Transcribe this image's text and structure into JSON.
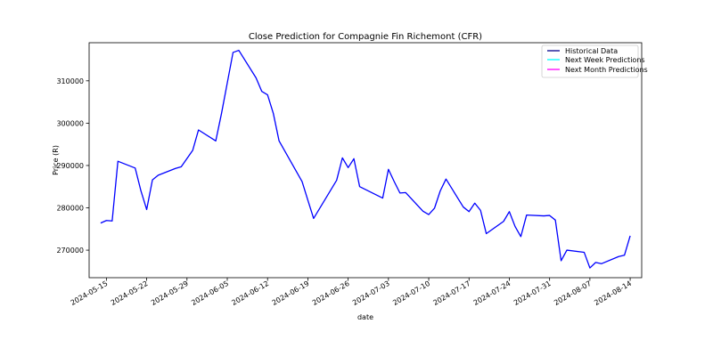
{
  "chart_data": {
    "type": "line",
    "title": "Close Prediction for Compagnie Fin Richemont (CFR)",
    "xlabel": "date",
    "ylabel": "Price (R)",
    "ylim": [
      263500,
      319000
    ],
    "xlim": [
      "2024-05-12",
      "2024-08-16"
    ],
    "x_ticks": [
      "2024-05-15",
      "2024-05-22",
      "2024-05-29",
      "2024-06-05",
      "2024-06-12",
      "2024-06-19",
      "2024-06-26",
      "2024-07-03",
      "2024-07-10",
      "2024-07-17",
      "2024-07-24",
      "2024-07-31",
      "2024-08-07",
      "2024-08-14"
    ],
    "y_ticks": [
      270000,
      280000,
      290000,
      300000,
      310000
    ],
    "y_tick_labels": [
      "270000",
      "280000",
      "290000",
      "300000",
      "310000"
    ],
    "legend_position": "top-right",
    "series": [
      {
        "name": "Historical Data",
        "color": "#0000ff",
        "legend_color": "#00008b",
        "points": [
          [
            "2024-05-14",
            276400
          ],
          [
            "2024-05-15",
            277000
          ],
          [
            "2024-05-16",
            276900
          ],
          [
            "2024-05-17",
            291000
          ],
          [
            "2024-05-20",
            289400
          ],
          [
            "2024-05-21",
            284000
          ],
          [
            "2024-05-22",
            279600
          ],
          [
            "2024-05-23",
            286600
          ],
          [
            "2024-05-24",
            287700
          ],
          [
            "2024-05-27",
            289300
          ],
          [
            "2024-05-28",
            289700
          ],
          [
            "2024-05-30",
            293600
          ],
          [
            "2024-05-31",
            298400
          ],
          [
            "2024-06-03",
            295800
          ],
          [
            "2024-06-04",
            302300
          ],
          [
            "2024-06-05",
            309500
          ],
          [
            "2024-06-06",
            316700
          ],
          [
            "2024-06-07",
            317200
          ],
          [
            "2024-06-10",
            310700
          ],
          [
            "2024-06-11",
            307500
          ],
          [
            "2024-06-12",
            306700
          ],
          [
            "2024-06-13",
            302300
          ],
          [
            "2024-06-14",
            295800
          ],
          [
            "2024-06-18",
            286200
          ],
          [
            "2024-06-19",
            281800
          ],
          [
            "2024-06-20",
            277500
          ],
          [
            "2024-06-24",
            286500
          ],
          [
            "2024-06-25",
            291800
          ],
          [
            "2024-06-26",
            289500
          ],
          [
            "2024-06-27",
            291600
          ],
          [
            "2024-06-28",
            285000
          ],
          [
            "2024-07-02",
            282300
          ],
          [
            "2024-07-03",
            289100
          ],
          [
            "2024-07-04",
            286200
          ],
          [
            "2024-07-05",
            283500
          ],
          [
            "2024-07-06",
            283600
          ],
          [
            "2024-07-09",
            279200
          ],
          [
            "2024-07-10",
            278400
          ],
          [
            "2024-07-11",
            279900
          ],
          [
            "2024-07-12",
            284000
          ],
          [
            "2024-07-13",
            286800
          ],
          [
            "2024-07-16",
            280200
          ],
          [
            "2024-07-17",
            279100
          ],
          [
            "2024-07-18",
            281100
          ],
          [
            "2024-07-19",
            279400
          ],
          [
            "2024-07-20",
            273900
          ],
          [
            "2024-07-23",
            276800
          ],
          [
            "2024-07-24",
            279100
          ],
          [
            "2024-07-25",
            275600
          ],
          [
            "2024-07-26",
            273200
          ],
          [
            "2024-07-27",
            278300
          ],
          [
            "2024-07-30",
            278100
          ],
          [
            "2024-07-31",
            278200
          ],
          [
            "2024-08-01",
            277100
          ],
          [
            "2024-08-02",
            267500
          ],
          [
            "2024-08-03",
            270000
          ],
          [
            "2024-08-06",
            269500
          ],
          [
            "2024-08-07",
            265800
          ],
          [
            "2024-08-08",
            267100
          ],
          [
            "2024-08-09",
            266800
          ],
          [
            "2024-08-12",
            268500
          ],
          [
            "2024-08-13",
            268800
          ],
          [
            "2024-08-14",
            273400
          ]
        ]
      },
      {
        "name": "Next Week Predictions",
        "color": "#00ffff",
        "points": []
      },
      {
        "name": "Next Month Predictions",
        "color": "#ff00ff",
        "points": []
      }
    ]
  }
}
